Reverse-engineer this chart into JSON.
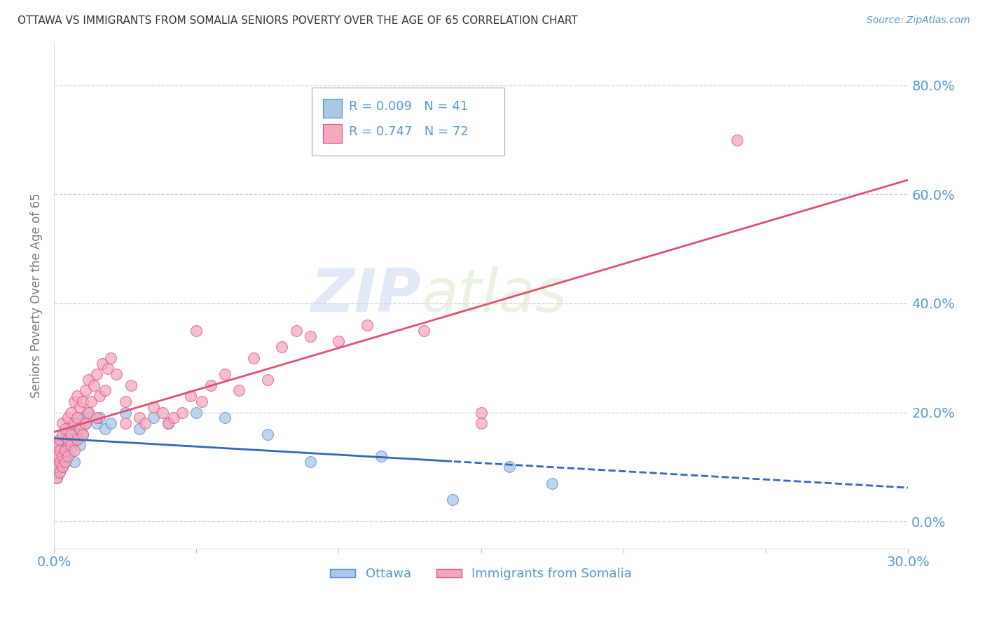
{
  "title": "OTTAWA VS IMMIGRANTS FROM SOMALIA SENIORS POVERTY OVER THE AGE OF 65 CORRELATION CHART",
  "source": "Source: ZipAtlas.com",
  "ylabel": "Seniors Poverty Over the Age of 65",
  "xlim": [
    0.0,
    0.3
  ],
  "ylim": [
    -0.05,
    0.88
  ],
  "yticks": [
    0.0,
    0.2,
    0.4,
    0.6,
    0.8
  ],
  "ottawa_color": "#a8c8e8",
  "somalia_color": "#f4a8be",
  "ottawa_edge_color": "#5588cc",
  "somalia_edge_color": "#e05080",
  "ottawa_line_color": "#3366bb",
  "somalia_line_color": "#e05070",
  "axis_label_color": "#5599cc",
  "grid_color": "#ccccdd",
  "legend_r_ottawa": "R = 0.009",
  "legend_n_ottawa": "N = 41",
  "legend_r_somalia": "R = 0.747",
  "legend_n_somalia": "N = 72",
  "ottawa_x": [
    0.001,
    0.001,
    0.001,
    0.002,
    0.002,
    0.002,
    0.003,
    0.003,
    0.003,
    0.004,
    0.004,
    0.005,
    0.005,
    0.005,
    0.006,
    0.006,
    0.007,
    0.007,
    0.008,
    0.008,
    0.009,
    0.01,
    0.01,
    0.011,
    0.012,
    0.015,
    0.016,
    0.018,
    0.02,
    0.025,
    0.03,
    0.035,
    0.04,
    0.05,
    0.06,
    0.075,
    0.09,
    0.115,
    0.14,
    0.16,
    0.175
  ],
  "ottawa_y": [
    0.12,
    0.1,
    0.08,
    0.14,
    0.11,
    0.09,
    0.13,
    0.1,
    0.12,
    0.15,
    0.11,
    0.14,
    0.16,
    0.12,
    0.13,
    0.17,
    0.15,
    0.11,
    0.16,
    0.18,
    0.14,
    0.16,
    0.19,
    0.18,
    0.2,
    0.18,
    0.19,
    0.17,
    0.18,
    0.2,
    0.17,
    0.19,
    0.18,
    0.2,
    0.19,
    0.16,
    0.11,
    0.12,
    0.04,
    0.1,
    0.07
  ],
  "somalia_x": [
    0.001,
    0.001,
    0.001,
    0.001,
    0.002,
    0.002,
    0.002,
    0.002,
    0.003,
    0.003,
    0.003,
    0.003,
    0.004,
    0.004,
    0.004,
    0.005,
    0.005,
    0.005,
    0.006,
    0.006,
    0.006,
    0.007,
    0.007,
    0.007,
    0.008,
    0.008,
    0.008,
    0.009,
    0.009,
    0.01,
    0.01,
    0.011,
    0.011,
    0.012,
    0.012,
    0.013,
    0.014,
    0.015,
    0.015,
    0.016,
    0.017,
    0.018,
    0.019,
    0.02,
    0.022,
    0.025,
    0.025,
    0.027,
    0.03,
    0.032,
    0.035,
    0.038,
    0.04,
    0.042,
    0.045,
    0.048,
    0.05,
    0.052,
    0.055,
    0.06,
    0.065,
    0.07,
    0.075,
    0.08,
    0.085,
    0.09,
    0.1,
    0.11,
    0.13,
    0.15,
    0.15,
    0.24
  ],
  "somalia_y": [
    0.08,
    0.1,
    0.12,
    0.14,
    0.09,
    0.11,
    0.13,
    0.15,
    0.1,
    0.12,
    0.16,
    0.18,
    0.11,
    0.13,
    0.17,
    0.12,
    0.15,
    0.19,
    0.14,
    0.16,
    0.2,
    0.13,
    0.18,
    0.22,
    0.15,
    0.19,
    0.23,
    0.17,
    0.21,
    0.16,
    0.22,
    0.18,
    0.24,
    0.2,
    0.26,
    0.22,
    0.25,
    0.19,
    0.27,
    0.23,
    0.29,
    0.24,
    0.28,
    0.3,
    0.27,
    0.18,
    0.22,
    0.25,
    0.19,
    0.18,
    0.21,
    0.2,
    0.18,
    0.19,
    0.2,
    0.23,
    0.35,
    0.22,
    0.25,
    0.27,
    0.24,
    0.3,
    0.26,
    0.32,
    0.35,
    0.34,
    0.33,
    0.36,
    0.35,
    0.18,
    0.2,
    0.7
  ]
}
